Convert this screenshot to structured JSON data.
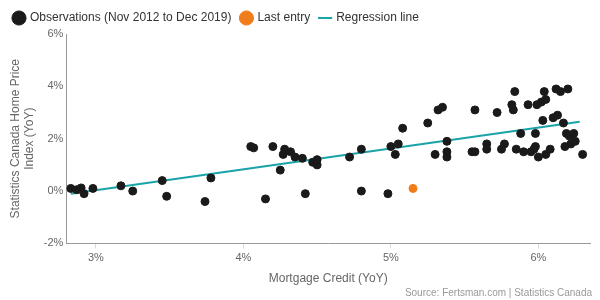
{
  "chart_data": {
    "type": "scatter",
    "xlabel": "Mortgage Credit (YoY)",
    "ylabel": [
      "Statistics Canada Home Price",
      "Index (YoY)"
    ],
    "annotations": [
      "Source: Fertsman.com | Statistics Canada"
    ],
    "xlim": [
      2.8,
      6.35
    ],
    "xticks": [
      {
        "value": 3,
        "label": "3%"
      },
      {
        "value": 4,
        "label": "4%"
      },
      {
        "value": 5,
        "label": "5%"
      },
      {
        "value": 6,
        "label": "6%"
      }
    ],
    "ylim": [
      -2,
      6
    ],
    "yticks": [
      {
        "value": -2,
        "label": "-2%"
      },
      {
        "value": 0,
        "label": "0%"
      },
      {
        "value": 2,
        "label": "2%"
      },
      {
        "value": 4,
        "label": "4%"
      },
      {
        "value": 6,
        "label": "6%"
      }
    ],
    "grid": false,
    "legend": "top-left",
    "series": [
      {
        "name": "Observations (Nov 2012 to Dec 2019)",
        "color": "#1a1a1a",
        "type": "scatter",
        "marker": "circle",
        "x": [
          2.83,
          2.87,
          2.9,
          2.92,
          2.98,
          3.17,
          3.25,
          3.45,
          3.48,
          3.74,
          3.78,
          4.05,
          4.07,
          4.15,
          4.2,
          4.25,
          4.27,
          4.28,
          4.32,
          4.35,
          4.4,
          4.42,
          4.47,
          4.5,
          4.5,
          4.72,
          4.8,
          4.8,
          4.98,
          5.0,
          5.03,
          5.05,
          5.08,
          5.25,
          5.3,
          5.32,
          5.35,
          5.38,
          5.38,
          5.38,
          5.55,
          5.57,
          5.57,
          5.65,
          5.65,
          5.72,
          5.75,
          5.77,
          5.82,
          5.83,
          5.84,
          5.85,
          5.88,
          5.9,
          5.93,
          5.95,
          5.97,
          5.98,
          5.98,
          5.99,
          6.0,
          6.02,
          6.03,
          6.04,
          6.05,
          6.05,
          6.08,
          6.1,
          6.12,
          6.13,
          6.15,
          6.17,
          6.18,
          6.19,
          6.2,
          6.21,
          6.22,
          6.24,
          6.25,
          6.3
        ],
        "values": [
          0.1,
          0.05,
          0.12,
          -0.1,
          0.1,
          0.2,
          0.0,
          0.4,
          -0.2,
          -0.4,
          0.5,
          1.7,
          1.65,
          -0.3,
          1.7,
          0.8,
          1.4,
          1.6,
          1.5,
          1.3,
          1.25,
          -0.1,
          1.1,
          1.0,
          1.2,
          1.3,
          1.6,
          0.0,
          -0.1,
          1.7,
          1.4,
          1.8,
          2.4,
          2.6,
          1.4,
          3.1,
          3.2,
          1.9,
          1.5,
          1.3,
          1.5,
          3.1,
          1.5,
          1.6,
          1.8,
          3.0,
          1.6,
          1.8,
          3.3,
          3.1,
          3.8,
          1.6,
          2.2,
          1.5,
          3.3,
          1.5,
          1.6,
          1.7,
          2.2,
          3.3,
          1.3,
          3.4,
          2.7,
          3.8,
          3.5,
          1.4,
          1.6,
          2.8,
          3.9,
          2.9,
          3.8,
          2.6,
          1.7,
          2.2,
          3.9,
          2.1,
          1.8,
          2.2,
          1.9,
          1.4
        ]
      },
      {
        "name": "Regression line",
        "color": "#1aa3a8",
        "type": "line",
        "line_style": "solid",
        "x": [
          2.83,
          6.28
        ],
        "values": [
          -0.1,
          2.65
        ]
      },
      {
        "name": "Last entry",
        "color": "#f07d1a",
        "type": "scatter",
        "marker": "circle",
        "x": [
          5.15
        ],
        "values": [
          0.1
        ]
      }
    ]
  }
}
